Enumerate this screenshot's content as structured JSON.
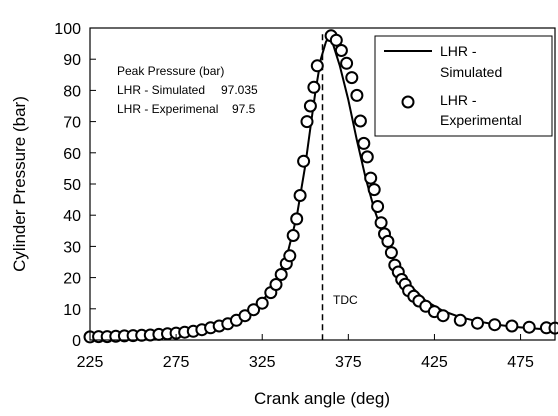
{
  "chart_data": {
    "type": "line",
    "xlabel": "Crank angle (deg)",
    "ylabel": "Cylinder Pressure (bar)",
    "xlim": [
      225,
      495
    ],
    "ylim": [
      0,
      100
    ],
    "xticks": [
      225,
      275,
      325,
      375,
      425,
      475
    ],
    "yticks": [
      0,
      10,
      20,
      30,
      40,
      50,
      60,
      70,
      80,
      90,
      100
    ],
    "grid": false,
    "legend_position": "top-right",
    "series": [
      {
        "name": "LHR - Simulated",
        "style": "solid line",
        "x": [
          225,
          245,
          260,
          275,
          290,
          300,
          310,
          318,
          325,
          330,
          335,
          340,
          345,
          350,
          353,
          356,
          359,
          362,
          363.5,
          366,
          370,
          375,
          380,
          385,
          390,
          395,
          400,
          410,
          420,
          430,
          440,
          450,
          460,
          470,
          480,
          490,
          495
        ],
        "y": [
          1.2,
          1.4,
          1.8,
          2.4,
          3.5,
          4.8,
          7.0,
          9.5,
          12.5,
          16.0,
          21.0,
          28.5,
          39.5,
          56.0,
          68.0,
          80.0,
          90.0,
          95.5,
          97.0,
          95.0,
          88.0,
          77.0,
          64.0,
          52.0,
          42.0,
          34.0,
          27.0,
          18.0,
          12.5,
          9.3,
          7.3,
          6.0,
          5.0,
          4.3,
          3.8,
          3.4,
          3.2
        ]
      },
      {
        "name": "LHR - Experimental",
        "style": "open circle markers",
        "x": [
          225,
          230,
          235,
          240,
          245,
          250,
          255,
          260,
          265,
          270,
          275,
          280,
          285,
          290,
          295,
          300,
          305,
          310,
          315,
          320,
          325,
          330,
          333,
          336,
          339,
          341,
          343,
          345,
          347,
          349,
          351,
          353,
          355,
          357,
          365,
          368,
          371,
          374,
          377,
          380,
          382,
          384,
          386,
          388,
          390,
          392,
          394,
          396,
          398,
          400,
          402,
          404,
          406,
          408,
          410,
          413,
          416,
          420,
          425,
          430,
          440,
          450,
          460,
          470,
          480,
          490,
          495
        ],
        "y": [
          1.0,
          1.1,
          1.1,
          1.2,
          1.3,
          1.4,
          1.5,
          1.6,
          1.8,
          2.0,
          2.2,
          2.5,
          2.8,
          3.3,
          3.9,
          4.5,
          5.2,
          6.3,
          7.8,
          9.7,
          11.8,
          15.2,
          17.8,
          21.0,
          24.5,
          27.0,
          33.5,
          38.8,
          46.3,
          57.3,
          70.0,
          75.0,
          81.0,
          87.9,
          97.5,
          96.1,
          92.8,
          88.7,
          84.1,
          78.4,
          70.2,
          63.0,
          58.7,
          51.9,
          48.2,
          42.8,
          37.6,
          34.0,
          31.6,
          28.0,
          24.0,
          21.8,
          19.4,
          17.9,
          15.8,
          14.0,
          12.5,
          10.8,
          9.1,
          7.8,
          6.3,
          5.4,
          4.9,
          4.5,
          4.1,
          3.9,
          3.8
        ]
      }
    ],
    "reference_line": {
      "x": 360,
      "style": "dashed",
      "label": "TDC"
    },
    "annotation": {
      "heading": "Peak Pressure (bar)",
      "rows": [
        {
          "label": "LHR - Simulated",
          "value": "97.035"
        },
        {
          "label": "LHR - Experimenal",
          "value": "97.5"
        }
      ]
    },
    "legend": {
      "line_entry": [
        "LHR -",
        "Simulated"
      ],
      "marker_entry": [
        "LHR -",
        "Experimental"
      ]
    }
  }
}
